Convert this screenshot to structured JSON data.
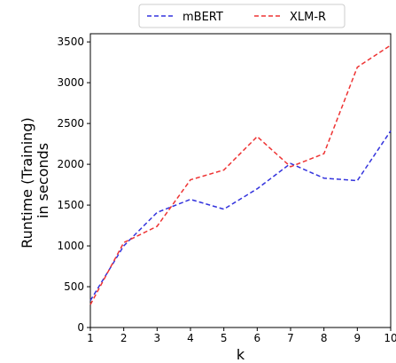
{
  "chart_data": {
    "type": "line",
    "x": [
      1,
      2,
      3,
      4,
      5,
      6,
      7,
      8,
      9,
      10
    ],
    "series": [
      {
        "name": "mBERT",
        "color": "#3333dd",
        "values": [
          330,
          1000,
          1410,
          1570,
          1450,
          1700,
          2010,
          1830,
          1800,
          2410
        ]
      },
      {
        "name": "XLM-R",
        "color": "#ee3333",
        "values": [
          280,
          1040,
          1240,
          1810,
          1930,
          2340,
          1970,
          2130,
          3190,
          3460
        ]
      }
    ],
    "xlabel": "k",
    "ylabel_lines": [
      "Runtime (Training)",
      "in seconds"
    ],
    "xticks": [
      "1",
      "2",
      "3",
      "4",
      "5",
      "6",
      "7",
      "8",
      "9",
      "10"
    ],
    "yticks": [
      "0",
      "500",
      "1000",
      "1500",
      "2000",
      "2500",
      "3000",
      "3500"
    ],
    "xlim": [
      1,
      10
    ],
    "ylim": [
      0,
      3600
    ],
    "grid": false,
    "legend_placement": "top-center, above plot",
    "line_style": "dashed"
  }
}
